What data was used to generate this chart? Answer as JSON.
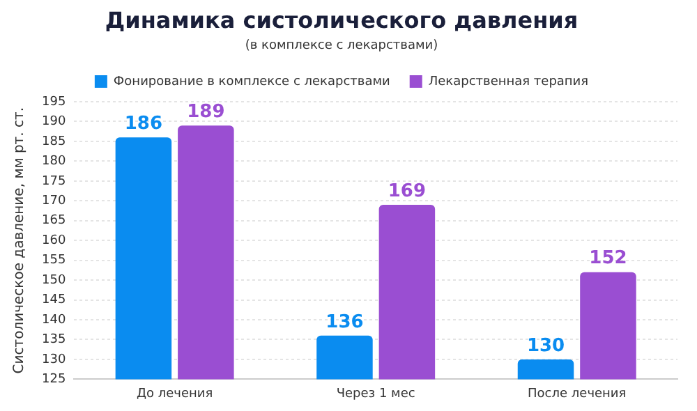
{
  "chart_data": {
    "type": "bar",
    "title": "Динамика систолического давления",
    "subtitle": "(в комплексе с лекарствами)",
    "ylabel": "Систолическое давление, мм рт. ст.",
    "categories": [
      "До лечения",
      "Через 1 мес",
      "После лечения"
    ],
    "series": [
      {
        "name": "Фонирование в комплексе с лекарствами",
        "color": "#0a8cf0",
        "values": [
          186,
          136,
          130
        ]
      },
      {
        "name": "Лекарственная терапия",
        "color": "#9a4ed2",
        "values": [
          189,
          169,
          152
        ]
      }
    ],
    "ylim": [
      125,
      195
    ],
    "yticks": [
      125,
      130,
      135,
      140,
      145,
      150,
      155,
      160,
      165,
      170,
      175,
      180,
      185,
      190,
      195
    ],
    "grid": "y",
    "legend": "top",
    "data_labels": true
  }
}
